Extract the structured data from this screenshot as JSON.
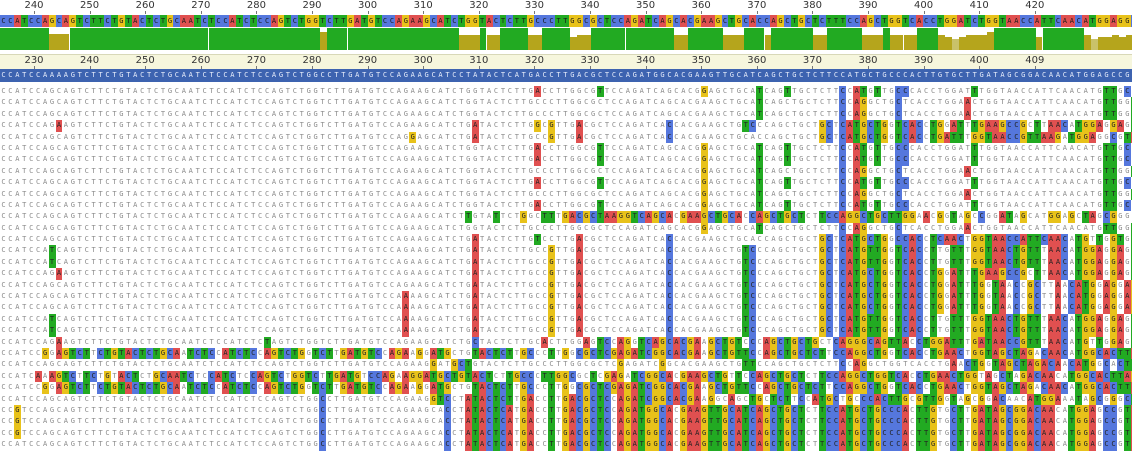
{
  "ruler_top": {
    "labels": [
      "240",
      "250",
      "260",
      "270",
      "280",
      "290",
      "300",
      "310",
      "320",
      "330",
      "340",
      "350",
      "360",
      "370",
      "380",
      "390",
      "400",
      "410",
      "420"
    ]
  },
  "ruler_reference": {
    "labels": [
      "230",
      "240",
      "250",
      "260",
      "270",
      "280",
      "290",
      "300",
      "310",
      "320",
      "330",
      "340",
      "350",
      "360",
      "370",
      "380",
      "390",
      "400",
      "409"
    ]
  },
  "consensus_sequence": "CCATCCAGCAGTCTTCTGTACTCTGCAATCTCCATCTCCAGTCTGGTCTTGATGTCCAGAAGCATCTGGTACTCTTGCCCTTGGCGCTCCAGATCAGCACGAAGCTGCACCAGCTGCTCTTTCCAGCTGGTCACCTGGATCTGGTAACCATTCAACATGGAGGCGTAGCGGGCCTGTG-TGTCTGCCAG",
  "reference_sequence": "CCATCCAAAAGTCTTCTGTACTCTGCAATCTCCATCTCCAGTCTGGCCTTGATGTCCAGAAGCATCCTATACTCATGACCTTGACGCTCCAGATGGCACGAAGTTGCATCAGCTGCTCTTCCATGCTGCCCACTTGTGCTTGATAGCGGACAACATGGAGCCGTAGCGGATTGTG-TTTCTTGCAG",
  "identity_track": {
    "colors": {
      "full": "#22aa22",
      "partial": "#b5a51c",
      "low": "#c9c26a"
    },
    "levels": [
      1.0,
      1.0,
      1.0,
      1.0,
      1.0,
      1.0,
      1.0,
      0.75,
      0.75,
      0.75,
      1.0,
      1.0,
      1.0,
      1.0,
      1.0,
      1.0,
      1.0,
      1.0,
      1.0,
      1.0,
      1.0,
      1.0,
      1.0,
      1.0,
      1.0,
      1.0,
      1.0,
      1.0,
      1.0,
      1.0,
      1.0,
      1.0,
      1.0,
      1.0,
      1.0,
      1.0,
      1.0,
      1.0,
      1.0,
      1.0,
      1.0,
      1.0,
      1.0,
      1.0,
      1.0,
      1.0,
      0.8,
      1.0,
      1.0,
      1.0,
      1.0,
      1.0,
      1.0,
      1.0,
      1.0,
      1.0,
      1.0,
      1.0,
      1.0,
      1.0,
      1.0,
      1.0,
      1.0,
      1.0,
      1.0,
      1.0,
      0.7,
      0.7,
      0.7,
      1.0,
      0.7,
      0.7,
      1.0,
      1.0,
      1.0,
      1.0,
      0.7,
      0.7,
      1.0,
      1.0,
      1.0,
      1.0,
      0.6,
      0.7,
      0.7,
      1.0,
      1.0,
      1.0,
      1.0,
      1.0,
      1.0,
      1.0,
      1.0,
      1.0,
      1.0,
      1.0,
      1.0,
      0.7,
      0.7,
      1.0,
      1.0,
      1.0,
      1.0,
      1.0,
      0.7,
      0.7,
      0.7,
      1.0,
      1.0,
      1.0,
      0.7,
      1.0,
      1.0,
      1.0,
      1.0,
      1.0,
      1.0,
      0.7,
      0.7,
      1.0,
      1.0,
      1.0,
      1.0,
      1.0,
      0.7,
      0.7,
      0.7,
      1.0,
      0.7,
      0.7,
      0.7,
      0.7,
      1.0,
      1.0,
      1.0,
      0.7,
      0.6,
      0.5,
      0.6,
      0.7,
      0.7,
      0.7,
      0.8,
      1.0,
      1.0,
      1.0,
      1.0,
      1.0,
      1.0,
      0.6,
      1.0,
      1.0,
      1.0,
      1.0,
      1.0,
      1.0,
      0.7,
      0.5,
      0.6,
      0.6,
      0.7,
      0.6,
      0.7,
      0.7,
      0.8,
      0.5,
      1.0,
      1.0,
      0.1,
      0.7,
      0.7,
      0.7,
      1.0,
      1.0,
      0.7,
      0.7,
      0.5,
      0.7,
      0.7,
      0.7,
      0.7
    ]
  },
  "nucleotide_colors": {
    "A": "#e05050",
    "C": "#5577dd",
    "G": "#e8c21a",
    "T": "#22aa22",
    "-": "#ffffff"
  },
  "alignment_tracks": [
    "CCATCCAGCAGTCTTCTGTACTCTGCAATCTCCATCTCCAGTCTGGTCTTGATGTCCAGAAGCATCTGGTACTCTTGACCTTGGCGTTCCAGATCAGCACGGAGCTGCATCAGTTGCTCTTCCATGTTGCCCACCTGGATTTGGTAACCATTCAACATGTTGCCGTAGCGGGCCTGTG-TGTCTGCCAG",
    "CCATCCAGCAGTCTTCTGTACTCTGCAATCTCCATCTCCAGTCTGGTCTTGATGTCCAGAAGCATCTGGTACTCTTGCCCTTGGCGCTCCAGATCAGCACGAAGCTGCATCAGCTGCTCTTCCAGGCTGCTCACCTGGAACTGGTAACCATTCAACATGTTGGTGTAGCGGGCCTGTG-TGTCTGCCAG",
    "CCATCCAGCAGTCTTCTGTACTCTGCAATCTCCATCTCCAGTCTGGTCTTGATGTCCAGAAGCATCTGGTACTCTTGCCCTTGGCGCTCCAGATCAGCACGAAGCTGCATCAGCTGCTCTTCCAGGCTGCTCACCTGGAACTGGTAACCATTCAACATGTTGGTGTAGCGGGCCTGTG-TGTCTGCCAG",
    "CCATCCAGAAGTCTTCTGTACTCTGCAATCTCCATCTCCAGTCTGGTCTTGATGTCCAGAAGCATCTGATACTCTTGGCGTTGACGCTCCAGATCACCACGAAGCTGTCCCAGCTGCTGCTCATGCTGGTCACCTGGATTTGAAGCCGCTTAACATGGAGGAGTAGCGGGCCTGTG-TGTCTGCCAG",
    "CCATCCAGCAGTCTTCTGTACTCTGCAATCTCCATCTCCAGTCTGGTCTTGATGTCCAGGAGCATCTGATACTCTTGCCGTTGACGCTCCAGATCACCACGAAGCTGCACCAGCTGCTGCTCATGCTGGTCACCTGATTTGGTAACCGTTAAGATGGAGGCGTAGCGGGCCTGTG-TGTCTGCCAG",
    "CCATCCAGCAGTCTTCTGTACTCTGCAATCTCCATCTCCAGTCTGGTCTTGATGTCCAGAAGCATCTGGTACTCTTGACCTTGGCGTTCCAGATCAGCACGGAGCTGCATCAGTTGCTCTTCCATGTTGCCCACCTGGATTTGGTAACCATTCAACATGTTGCCGTAGCGGGCCTGTG-TGTCTGCCAG",
    "CCATCCAGCAGTCTTCTGTACTCTGCAATCTCCATCTCCAGTCTGGTCTTGATGTCCAGAAGCATCTGGTACTCTTGACCTTGGCGTTCCAGATCAGCACGGAGCTGCATCAGTTGCTCTTCCATGTTGCCCACCTGGATTTGGTAACCATTCAACATGTTGCCGTAGCGGGCCTGTG-TGTCTGCCAG",
    "CCATCCAGCAGTCTTCTGTACTCTGCAATCTCCATCTCCAGTCTGGTCTTGATGTCCAGAAGCATCTGGTACTCTTGCCCTTGGCGCTCCAGATCAGCACGGAGCTGCATCAGCTGCTCTTCCAGGCTGCTCACCTGGAACTGGTAACCATTCAACATGTTGGTGTAGCGGGCCTGTG-TGTCTGCCAG",
    "CCATCCAGCAGTCTTCTGTACTCTGCAATCTCCATCTCCAGTCTGGTCTTGATGTCCAGAAGCATCTGGTACTCTTGACCTTGGCGTTCCAGATCAGCACGGAGCTGCATCAGTTGCTCTTCCATGTTGCCCACCTGGATTTGGTAACCATTCAACATGTTGCCGTAGCGGGCCTGTG-TGTCTGCCAG",
    "CCATCCAGCAGTCTTCTGTACTCTGCAATCTCCATCTCCAGTCTGGTCTTGATGTCCAGAAGCATCTGGTACTCTTGCCCTTGGCGCTCCAGATCAGCACGGAGCTGCATCAGCTGCTCTTCCAGGCTGCTCACCTGGAACTGGTAACCATTCAACATGTTGGTGTAGCGGGCCTGTG-TGTCTGCCAG",
    "CCATCCAGCAGTCTTCTGTACTCTGCAATCTCCATCTCCAGTCTGGTCTTGATGTCCAGAAGCATCTGGTACTCTTGACCTTGGCGTTCCAGATCAGCACGGAGCTGCATCAGTTGCTCTTCCATGTTGCCCACCTGGATTTGGTAACCATTCAACATGTTGCCGTAGCGGGCCTGTG-TGTCTGCCAG",
    "CCATCCAGCAGTCTTCTGTACTCTGCAATCTCCATCTCCAGTCTGGTCTTGATGTCCAGAAGCATCTTGTATTCTGGCTTTGACGCTAAGGTCAGCACGAAGCTGCACCAGCTGCTCTTCCAGGCTGCTTGGAACGGTAGCCGGATAGCATGGAGCTAGCGGGCCTGTG-TGTCTGCCAG",
    "CCATCCAGCAGTCTTCTGTACTCTGCAATCTCCATCTCCAGTCTGGTCTTGATGTCCAGAAGCATCTGGTACTCTTGCCCTTGGCGCTCCAGATCAGCACGGAGCTGCATCAGCTGCTCTTCCAGGCTGCTCACCTGGAACTGGTAACCATTCAACATGTTGGTGTAGCGGGCCTGTG-TGTCTGCCAG",
    "CCATCCAGCAGTCTTCTGTACTCTGCAATCTCCATCTCCAGTCTGGTCTTGATGTCCAGAAGCATCTGATACTCTTGTCCTTGACGCTCCAGATCACCACGAAGCTGCACCAGCTGCTGCTCATGCTGGCCACCTCAACTGGTAACCATTCAACATGTTGGTGTAGCGGGCCTGTG-TGTCTGCCAG",
    "CCATCCATCAGTCTTCTGTACTCTGCAATCTCCATCTCCAGTCTGGTCTTGATGTCCAGAAGCATCTGATACTCTTGCCGTTGACGCTCCAGATCACCACGAAGCTGTCCCAGCTGCTGCTCATGTTGGTCACCTTGTTTGGTAACTGTTTAACATGGAGGAGTAGCGGGCCTGTG-TGTCTGCCAG",
    "CCATCCATCAGTCTTCTGTACTCTGCAATCTCCATCTCCAGTCTGGTCTTGATGTCCAGAAGCATCTGATACTCTTGCCGTTGACGCTCCAGATCACCACGAAGCTGTCCCAGCTGCTGCTCATGTTGGTCACCTTGTTTGGTAACTGTTTAACATGGAGGAGTAGCGGGCCTGTG-TGTCTGCCAG",
    "CCATCCAGAAGTCTTCTGTACTCTGCAATCTCCATCTCCAGTCTGGTCTTGATGTCCAGAAGCATCTGATACTCTTGCCGTTGACGCTCCAGATCACCACGAAGCTGTCCCAGCTGCTGCTCATGCTGGTCACCTGGATTTGAAGCCGCTTAACATGGAGGAGTAGCGGGCCTGTG-TGTCTGCCAG",
    "CCATCCAGCAGTCTTCTGTACTCTGCAATCTCCATCTCCAGTCTGGTCTTGATGTCCAGAAGCATCTGATACTCTTGCCGTTGACGCTCCAGATCACCACGAAGCTGTCCCAGCTGCTGCTCATGCTGGTCACCTGGATTTGGTAACCGCTTAACATGGAGGAGTAGCGGTCTCTG-TGTCTGCCAG",
    "CCATCCAGCAGTCTTCTGTACTCTGCAATCTCCATCTCCAGTCTGGTCTTGATGTCCAAAAGCATCTGATACTCTTGCCGTTGACGCTCCAGATCACCACGAAGCTGTCCCAGCTGCTGCTCATGCTGGTCACCTGGATTTGGTAACCGCTTAACATGGAGGAGTAGCGGGCCTGTG-TGTCTGCCAG",
    "CCATCCAGCAGTCTTCTGTACTCTGCAATCTCCATCTCCAGTCTGGTCTTGATGTCCAAAAGCATCTGATACTCTTGCCGTTGACGCTCCAGATCACCACGAAGCTGTCCCAGCTGCTGCTCATGCTGGTCACCTGGATTTGGTAACCGCTTAACATGGAGGAGTAGCGGTCCCTG-TGTCTGCCAG",
    "CCATCCATCAGTCTTCTGTACTCTGCAATCTCCATCTCCAGTCTGGTCTTGATGTCCAAAAGCATCTGATACTCTTGCCGTTGACGCTCCAGATCACCACGAAGCTGTCCCAGCTGCTGCTCATGTTGGTCACCTTGTTTGGTAACTGTTTAACATGGAGGAGTAGCGGTCCGTG-TGTCTGCCAG",
    "CCATCCATCAGTCTTCTGTACTCTGCAATCTCCATCTCCAGTCTGGTCTTGATGTCCAAAAGCATCTGATACTCTTGCCGTTGACGCTCCAGATCACCACGAAGCTGTCCCAGCTGCTGCTCATGTTGGTCACCTTGTTTGGTAACTGTTTAACATGGAGGAGTAGCGGTCCGTG-TGTCTGCCAG",
    "CCATCCAGAAGTCTTCTGTACTCTGCAATCTCCATCTCTAGTCTGGTCTTGATGTCCAGAAGCATCTGCTACTCTTGCACTTGGAGTCCAGGTCAGCACGAAGCTGTCCCAGCTGCTGCTCAGGGCAGTTACCTGGATTTGATAACCGTTTAACATGTTGGAGTAGCGGGCCTGTG-TGTCTGCCAG",
    "CCATCCGGAGTCTTCTGTACTCTGCAATCTCCATCTCCAGTCTGGTCTTGATGTCCAGAAGGATGCTGTACTCTTGCCCTTGGCGCTCGAGATCGGCACGAAGCTGTTCCAGCTGCTCTTCCAGGCTGGTCACCTGAACTGGTAGCTAGACAACATGGCACTTAGCGGGCCTGTC-TGTCTGCCAG",
    "CCATCCAGCAGTCTTCTGTACTCTGCAATCTCCATCTCCAGTCTGGTCTTGATGTCCAGAAGGATGCTGTACTCTTGCCCTTGGCGCTCGAGATCGGCACGAAGCTGTTCCAGCTGCTCTTCCAGGCTGGTCACCTGAACTGGTAGCTAGACAACATGGCACTTAGCGGGCCTGTC-TGTCTGCCAG",
    "CCATCAAAGTCTTCTGTACTCTGCAATCTCCATCTCCAGTCTGGTCTTGATGTCCAGAAGGATGCTGTACTCTTGCCCTTGGCGCTCGAGATCGGCACGAAGCTGTTCCAGCTGCTCTTCCAGGCTGGTCACCTGAACTGGTAGCTAGACAACATGGCACTTAGCGGGCCTGTC-TGTCTGCCAG",
    "CCATCCGGAGTCTTCTGTACTCTGCAATCTCCATCTCCAGTCTGGTCTTGATGTCCAGAAGGATGCTGTACTCTTGCCCTTGGCGCTCGAGATCGGCACGAAGCTGTTCCAGCTGCTCTTCCAGGCTGGTCACCTGAACTGGTAGCTAGACAACATGGCACTTAGCGGGCCTGTC-TGTCTGCCAG",
    "CCATCCAGCAGTCTTCTGTACTCTGCAATCTCCATCTCCAGTCTGGCCTTGATGTCCAGAAGGTCCTATACTCTTGACCTTGACGCTCCAGATCGGCACGAAGGCAGCTGCTCTTCCATGCTGCCCACTTGCGTTGGTAGCGGACAACATGGAAATAGCGGGCTGTG-TGTCTTGCAG",
    "CCGTCCAGCAGTCTTCTGTACTCTGCAATCTCCATCTCCAGTCTGGCCTTGATGTCCAGAAGCACCTATACTCATGACCTTGACGCTCCAGATGGCACGAAGTTGCATCAGCTGCTCTTCCATGCTGCCCACTTGTGCTTGATAGCGGACAACATGGAGCCGTAGCGGATTGTG-TTTCTTGCAG",
    "CCGTCCAGCAGTCTTCTGTACTCTGCAATCTCCATCTCCAGTCTGGCCTTGATGTCCAGAAGCACCTATACTCATGACCTTGACGCTCCAGATGGCACGAAGTTGCATCAGCTGCTCTTCCATGCTGCCCACTTGTGCTTGATAGCGGACAACATGGAGCCGTAGCGGATTGTG-TTTCTTGCAG",
    "CCGTCCAGCAGTCTTCTGTACTCTGCAATCTCCATCTCCAGTCTGGCCTTGATGTCCAGAAGCACCTATACTCATGACCTTGACGCTCCAGATGGCACGAAGTTGCATCAGCTGCTCTTCCATGCTGCCCACTTGTGCTTGATAGCGGACAACATGGAGCCGTAGCGGATTGTG-TTTCTTGCAG",
    "CCATCCAGCAGTCTTCTGTACTCTGCAATCTCCATCTCCAGTCTGGCCTTGATGTCCAGAAGCACCTATACTCATGACCTTGACGCTCCAGATGGCACGAAGTTGCATCAGCTGCTCTTCCATGCTGCCCACTTGTGCTTGATAGCGGACAACATGGAGCCGTAGCGGATTGTG-TTTCTTGCAG"
  ]
}
